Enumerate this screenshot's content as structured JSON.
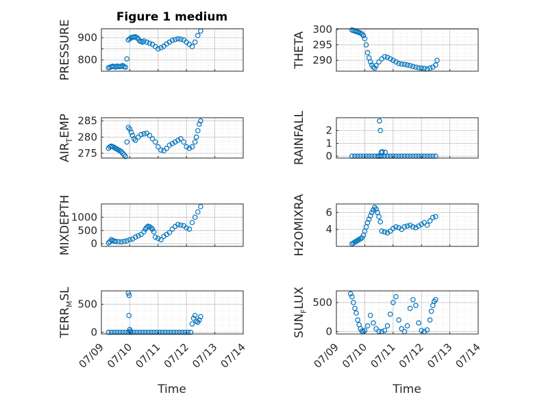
{
  "figure": {
    "title": "Figure 1 medium",
    "xlabel": "Time"
  },
  "chart_data": [
    {
      "type": "scatter",
      "ylabel": "PRESSURE",
      "ylim": [
        750,
        940
      ],
      "yticks": [
        800,
        850,
        900
      ],
      "ytick_labels": [
        "800",
        "",
        "900"
      ],
      "x": [
        0.25,
        0.3,
        0.35,
        0.4,
        0.45,
        0.5,
        0.55,
        0.6,
        0.65,
        0.7,
        0.75,
        0.8,
        0.85,
        0.9,
        0.95,
        1.0,
        1.05,
        1.1,
        1.15,
        1.2,
        1.25,
        1.3,
        1.35,
        1.4,
        1.45,
        1.5,
        1.6,
        1.7,
        1.8,
        1.9,
        2.0,
        2.1,
        2.2,
        2.3,
        2.4,
        2.5,
        2.6,
        2.7,
        2.8,
        2.9,
        3.0,
        3.1,
        3.2,
        3.3,
        3.4,
        3.5
      ],
      "y": [
        765,
        767,
        770,
        772,
        770,
        768,
        773,
        771,
        770,
        772,
        775,
        770,
        768,
        805,
        890,
        895,
        900,
        902,
        903,
        904,
        900,
        895,
        885,
        883,
        880,
        885,
        880,
        875,
        870,
        860,
        850,
        855,
        862,
        872,
        880,
        888,
        892,
        895,
        893,
        890,
        880,
        870,
        860,
        880,
        910,
        930
      ]
    },
    {
      "type": "scatter",
      "ylabel": "THETA",
      "ylim": [
        286.5,
        300.2
      ],
      "yticks": [
        290,
        295,
        300
      ],
      "ytick_labels": [
        "290",
        "295",
        "300"
      ],
      "x": [
        0.55,
        0.6,
        0.65,
        0.7,
        0.75,
        0.8,
        0.85,
        0.9,
        0.95,
        1.0,
        1.05,
        1.1,
        1.15,
        1.2,
        1.25,
        1.3,
        1.35,
        1.4,
        1.5,
        1.6,
        1.7,
        1.8,
        1.9,
        2.0,
        2.1,
        2.2,
        2.3,
        2.4,
        2.5,
        2.6,
        2.7,
        2.8,
        2.9,
        3.0,
        3.1,
        3.2,
        3.3,
        3.4,
        3.5,
        3.55
      ],
      "y": [
        299.8,
        299.6,
        299.5,
        299.3,
        299.2,
        299.0,
        298.8,
        298.5,
        298.0,
        297.0,
        295.0,
        292.5,
        290.8,
        289.5,
        288.5,
        287.8,
        287.5,
        288.3,
        289.5,
        290.5,
        291.2,
        291.0,
        290.5,
        290.0,
        289.5,
        289.0,
        288.8,
        288.7,
        288.5,
        288.3,
        288.0,
        287.8,
        287.6,
        287.5,
        287.4,
        287.2,
        287.5,
        287.8,
        288.5,
        290.0
      ]
    },
    {
      "type": "scatter",
      "ylabel": "AIR",
      "ylabel_sub": "T",
      "ylabel_tail": "EMP",
      "ylim": [
        273.5,
        286
      ],
      "yticks": [
        275,
        280,
        285
      ],
      "ytick_labels": [
        "275",
        "280",
        "285"
      ],
      "x": [
        0.25,
        0.3,
        0.35,
        0.4,
        0.45,
        0.5,
        0.55,
        0.6,
        0.65,
        0.7,
        0.75,
        0.8,
        0.85,
        0.9,
        0.95,
        1.0,
        1.05,
        1.1,
        1.15,
        1.2,
        1.3,
        1.4,
        1.5,
        1.6,
        1.7,
        1.8,
        1.9,
        2.0,
        2.1,
        2.2,
        2.3,
        2.4,
        2.5,
        2.6,
        2.7,
        2.8,
        2.9,
        3.0,
        3.1,
        3.2,
        3.3,
        3.35,
        3.4,
        3.45,
        3.5
      ],
      "y": [
        276.5,
        277.0,
        277.2,
        277.0,
        276.8,
        276.5,
        276.3,
        276.0,
        275.8,
        275.5,
        275.0,
        274.5,
        274.0,
        278.5,
        283.0,
        282.5,
        281.5,
        280.5,
        279.5,
        279.0,
        280.0,
        280.8,
        281.0,
        281.2,
        280.5,
        279.5,
        278.5,
        277.0,
        276.0,
        275.8,
        276.5,
        277.5,
        278.0,
        278.5,
        279.0,
        279.5,
        278.5,
        277.0,
        276.5,
        277.0,
        278.5,
        280.0,
        282.0,
        284.0,
        285.0
      ]
    },
    {
      "type": "scatter",
      "ylabel": "RAINFALL",
      "ylim": [
        -0.15,
        3.0
      ],
      "yticks": [
        0,
        1,
        2
      ],
      "ytick_labels": [
        "0",
        "1",
        "2"
      ],
      "x": [
        0.55,
        0.65,
        0.75,
        0.85,
        0.95,
        1.05,
        1.15,
        1.25,
        1.35,
        1.45,
        1.5,
        1.55,
        1.6,
        1.7,
        1.8,
        1.9,
        2.0,
        2.1,
        2.2,
        2.3,
        2.4,
        2.5,
        2.6,
        2.7,
        2.8,
        2.9,
        3.0,
        3.1,
        3.2,
        3.3,
        3.4,
        3.5,
        1.52,
        1.55,
        1.58,
        1.62,
        1.72
      ],
      "y": [
        0,
        0,
        0,
        0,
        0,
        0,
        0,
        0,
        0,
        0,
        0,
        0,
        0,
        0,
        0,
        0,
        0,
        0,
        0,
        0,
        0,
        0,
        0,
        0,
        0,
        0,
        0,
        0,
        0,
        0,
        0,
        0,
        2.75,
        2.0,
        0.3,
        0.35,
        0.3
      ]
    },
    {
      "type": "scatter",
      "ylabel": "MIXDEPTH",
      "ylim": [
        -100,
        1500
      ],
      "yticks": [
        0,
        500,
        1000
      ],
      "ytick_labels": [
        "0",
        "500",
        "1000"
      ],
      "x": [
        0.25,
        0.3,
        0.35,
        0.4,
        0.45,
        0.5,
        0.6,
        0.7,
        0.8,
        0.9,
        1.0,
        1.1,
        1.2,
        1.3,
        1.4,
        1.5,
        1.55,
        1.6,
        1.65,
        1.7,
        1.75,
        1.8,
        1.85,
        1.9,
        2.0,
        2.1,
        2.2,
        2.3,
        2.4,
        2.5,
        2.6,
        2.7,
        2.8,
        2.9,
        3.0,
        3.1,
        3.2,
        3.3,
        3.4,
        3.5
      ],
      "y": [
        30,
        80,
        150,
        120,
        100,
        90,
        80,
        70,
        90,
        110,
        150,
        180,
        250,
        300,
        350,
        450,
        550,
        620,
        660,
        640,
        600,
        550,
        450,
        250,
        200,
        150,
        280,
        350,
        420,
        550,
        650,
        720,
        700,
        680,
        600,
        550,
        800,
        1000,
        1200,
        1400
      ]
    },
    {
      "type": "scatter",
      "ylabel": "H2OMIXRA",
      "ylim": [
        2.0,
        7.0
      ],
      "yticks": [
        4,
        6
      ],
      "ytick_labels": [
        "4",
        "6"
      ],
      "x": [
        0.55,
        0.6,
        0.65,
        0.7,
        0.75,
        0.8,
        0.85,
        0.9,
        0.95,
        1.0,
        1.05,
        1.1,
        1.15,
        1.2,
        1.25,
        1.3,
        1.35,
        1.4,
        1.45,
        1.5,
        1.55,
        1.6,
        1.7,
        1.8,
        1.9,
        2.0,
        2.1,
        2.2,
        2.3,
        2.4,
        2.5,
        2.6,
        2.7,
        2.8,
        2.9,
        3.0,
        3.1,
        3.2,
        3.3,
        3.4,
        3.5
      ],
      "y": [
        2.3,
        2.4,
        2.5,
        2.6,
        2.7,
        2.8,
        2.9,
        3.0,
        3.3,
        3.8,
        4.3,
        4.8,
        5.2,
        5.6,
        6.0,
        6.3,
        6.6,
        6.4,
        6.0,
        5.5,
        4.9,
        3.8,
        3.7,
        3.6,
        3.8,
        4.1,
        4.3,
        4.2,
        4.0,
        4.3,
        4.4,
        4.5,
        4.3,
        4.2,
        4.4,
        4.6,
        4.8,
        4.5,
        5.0,
        5.4,
        5.5
      ]
    },
    {
      "type": "scatter",
      "ylabel": "TERR",
      "ylabel_sub": "M",
      "ylabel_tail": "SL",
      "ylim": [
        -30,
        740
      ],
      "yticks": [
        0,
        500
      ],
      "ytick_labels": [
        "0",
        "500"
      ],
      "x": [
        0.25,
        0.35,
        0.45,
        0.55,
        0.65,
        0.75,
        0.85,
        0.95,
        1.05,
        1.15,
        1.25,
        1.35,
        1.45,
        1.55,
        1.65,
        1.75,
        1.85,
        1.95,
        2.05,
        2.15,
        2.25,
        2.35,
        2.45,
        2.55,
        2.65,
        2.75,
        2.85,
        2.95,
        3.05,
        3.15,
        0.95,
        0.98,
        1.0,
        0.97,
        1.02,
        3.2,
        3.25,
        3.3,
        3.35,
        3.4,
        3.45,
        3.5
      ],
      "y": [
        0,
        0,
        0,
        0,
        0,
        0,
        0,
        0,
        0,
        0,
        0,
        0,
        0,
        0,
        0,
        0,
        0,
        0,
        0,
        0,
        0,
        0,
        0,
        0,
        0,
        0,
        0,
        0,
        0,
        0,
        700,
        660,
        50,
        300,
        20,
        150,
        250,
        300,
        200,
        180,
        220,
        280
      ]
    },
    {
      "type": "scatter",
      "ylabel": "SUN",
      "ylabel_sub": "F",
      "ylabel_tail": "LUX",
      "ylim": [
        -40,
        700
      ],
      "yticks": [
        0,
        500
      ],
      "ytick_labels": [
        "0",
        "500"
      ],
      "x": [
        0.5,
        0.55,
        0.6,
        0.65,
        0.7,
        0.75,
        0.8,
        0.85,
        0.9,
        0.95,
        1.0,
        1.1,
        1.2,
        1.3,
        1.4,
        1.5,
        1.6,
        1.7,
        1.8,
        1.9,
        2.0,
        2.1,
        2.2,
        2.3,
        2.4,
        2.5,
        2.6,
        2.7,
        2.8,
        2.9,
        3.0,
        3.1,
        3.2,
        3.3,
        3.35,
        3.4,
        3.45,
        3.5
      ],
      "y": [
        650,
        600,
        500,
        400,
        320,
        200,
        120,
        50,
        10,
        0,
        20,
        100,
        280,
        150,
        50,
        5,
        0,
        20,
        100,
        300,
        500,
        600,
        200,
        50,
        0,
        100,
        400,
        550,
        450,
        150,
        20,
        0,
        30,
        200,
        350,
        450,
        520,
        550
      ]
    }
  ],
  "x_axis": {
    "domain": [
      0,
      5
    ],
    "ticks": [
      0,
      1,
      2,
      3,
      4,
      5
    ],
    "tick_labels": [
      "07/09",
      "07/10",
      "07/11",
      "07/12",
      "07/13",
      "07/14"
    ]
  },
  "colors": {
    "marker": "#0072BD",
    "axis": "#262626",
    "grid": "#d9d9d9"
  }
}
